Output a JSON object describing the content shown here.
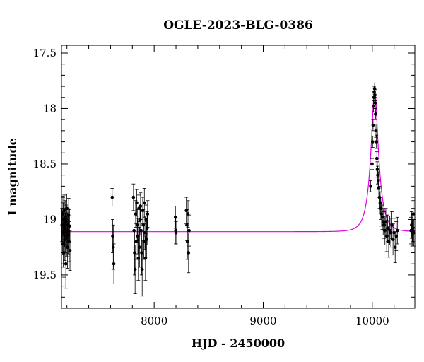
{
  "chart_data": {
    "type": "scatter",
    "title": "OGLE-2023-BLG-0386",
    "xlabel": "HJD - 2450000",
    "ylabel": "I magnitude",
    "xlim": [
      7150,
      10390
    ],
    "ylim": [
      19.8,
      17.43
    ],
    "y_inverted": true,
    "x_ticks": [
      8000,
      9000,
      10000
    ],
    "x_tick_labels": [
      "8000",
      "9000",
      "10000"
    ],
    "y_ticks": [
      17.5,
      18,
      18.5,
      19,
      19.5
    ],
    "y_tick_labels": [
      "17.5",
      "18",
      "18.5",
      "19",
      "19.5"
    ],
    "grid": false,
    "colors": {
      "points": "#000000",
      "model": "#e100e1"
    },
    "series": [
      {
        "kind": "points_with_errorbars",
        "points": [
          [
            7155,
            19.05,
            0.15
          ],
          [
            7160,
            19.12,
            0.2
          ],
          [
            7163,
            18.95,
            0.16
          ],
          [
            7166,
            19.22,
            0.21
          ],
          [
            7169,
            19.0,
            0.15
          ],
          [
            7172,
            19.3,
            0.22
          ],
          [
            7175,
            18.92,
            0.14
          ],
          [
            7178,
            19.08,
            0.17
          ],
          [
            7181,
            19.18,
            0.19
          ],
          [
            7184,
            18.98,
            0.15
          ],
          [
            7187,
            19.12,
            0.18
          ],
          [
            7190,
            19.4,
            0.22
          ],
          [
            7193,
            19.02,
            0.15
          ],
          [
            7196,
            19.15,
            0.18
          ],
          [
            7199,
            18.9,
            0.13
          ],
          [
            7202,
            19.1,
            0.16
          ],
          [
            7205,
            19.25,
            0.19
          ],
          [
            7208,
            19.05,
            0.15
          ],
          [
            7212,
            19.14,
            0.17
          ],
          [
            7216,
            18.96,
            0.15
          ],
          [
            7220,
            19.2,
            0.18
          ],
          [
            7224,
            19.06,
            0.15
          ],
          [
            7228,
            19.28,
            0.18
          ],
          [
            7615,
            18.8,
            0.08
          ],
          [
            7620,
            19.15,
            0.15
          ],
          [
            7625,
            19.25,
            0.2
          ],
          [
            7630,
            19.4,
            0.18
          ],
          [
            7810,
            18.8,
            0.12
          ],
          [
            7815,
            19.1,
            0.15
          ],
          [
            7820,
            19.3,
            0.2
          ],
          [
            7825,
            19.45,
            0.22
          ],
          [
            7830,
            18.95,
            0.12
          ],
          [
            7835,
            19.2,
            0.16
          ],
          [
            7840,
            18.85,
            0.12
          ],
          [
            7845,
            19.05,
            0.14
          ],
          [
            7850,
            19.15,
            0.16
          ],
          [
            7855,
            19.35,
            0.2
          ],
          [
            7860,
            18.9,
            0.12
          ],
          [
            7865,
            19.25,
            0.18
          ],
          [
            7870,
            19.0,
            0.14
          ],
          [
            7875,
            18.88,
            0.12
          ],
          [
            7880,
            19.1,
            0.15
          ],
          [
            7885,
            19.3,
            0.2
          ],
          [
            7890,
            19.45,
            0.24
          ],
          [
            7895,
            18.92,
            0.12
          ],
          [
            7900,
            19.05,
            0.14
          ],
          [
            7905,
            19.2,
            0.16
          ],
          [
            7910,
            18.85,
            0.13
          ],
          [
            7915,
            19.12,
            0.15
          ],
          [
            7920,
            19.35,
            0.2
          ],
          [
            7925,
            19.0,
            0.13
          ],
          [
            7930,
            19.18,
            0.16
          ],
          [
            7935,
            19.08,
            0.15
          ],
          [
            7940,
            18.95,
            0.12
          ],
          [
            8195,
            18.98,
            0.1
          ],
          [
            8198,
            19.1,
            0.12
          ],
          [
            8200,
            19.12,
            0.1
          ],
          [
            8295,
            18.92,
            0.12
          ],
          [
            8300,
            19.05,
            0.14
          ],
          [
            8305,
            19.2,
            0.16
          ],
          [
            8310,
            18.95,
            0.12
          ],
          [
            8315,
            19.3,
            0.18
          ],
          [
            8320,
            19.1,
            0.14
          ],
          [
            9985,
            18.7,
            0.05
          ],
          [
            9998,
            18.5,
            0.05
          ],
          [
            10003,
            18.3,
            0.05
          ],
          [
            10007,
            18.15,
            0.05
          ],
          [
            10011,
            17.98,
            0.05
          ],
          [
            10015,
            17.9,
            0.05
          ],
          [
            10018,
            17.85,
            0.05
          ],
          [
            10021,
            17.82,
            0.05
          ],
          [
            10024,
            17.88,
            0.05
          ],
          [
            10027,
            17.95,
            0.05
          ],
          [
            10030,
            18.05,
            0.05
          ],
          [
            10034,
            18.2,
            0.06
          ],
          [
            10038,
            18.3,
            0.06
          ],
          [
            10042,
            18.45,
            0.06
          ],
          [
            10046,
            18.55,
            0.07
          ],
          [
            10050,
            18.6,
            0.08
          ],
          [
            10055,
            18.65,
            0.08
          ],
          [
            10060,
            18.72,
            0.08
          ],
          [
            10066,
            18.8,
            0.1
          ],
          [
            10072,
            18.85,
            0.1
          ],
          [
            10078,
            18.9,
            0.1
          ],
          [
            10085,
            18.95,
            0.11
          ],
          [
            10092,
            18.98,
            0.11
          ],
          [
            10100,
            19.02,
            0.12
          ],
          [
            10108,
            19.05,
            0.12
          ],
          [
            10116,
            19.1,
            0.13
          ],
          [
            10124,
            19.02,
            0.12
          ],
          [
            10132,
            19.15,
            0.14
          ],
          [
            10140,
            19.08,
            0.12
          ],
          [
            10150,
            19.2,
            0.14
          ],
          [
            10160,
            19.1,
            0.13
          ],
          [
            10170,
            19.12,
            0.13
          ],
          [
            10180,
            19.05,
            0.12
          ],
          [
            10190,
            19.18,
            0.14
          ],
          [
            10200,
            19.12,
            0.13
          ],
          [
            10210,
            19.25,
            0.14
          ],
          [
            10220,
            19.15,
            0.13
          ],
          [
            10230,
            19.1,
            0.12
          ],
          [
            10355,
            19.1,
            0.12
          ],
          [
            10360,
            19.05,
            0.12
          ],
          [
            10365,
            19.12,
            0.12
          ],
          [
            10370,
            19.08,
            0.12
          ],
          [
            10375,
            18.95,
            0.12
          ],
          [
            10380,
            19.12,
            0.12
          ]
        ]
      },
      {
        "kind": "model_curve",
        "baseline": 19.11,
        "peak_time": 10022,
        "peak_mag": 17.83,
        "einstein_time": 73
      }
    ]
  }
}
